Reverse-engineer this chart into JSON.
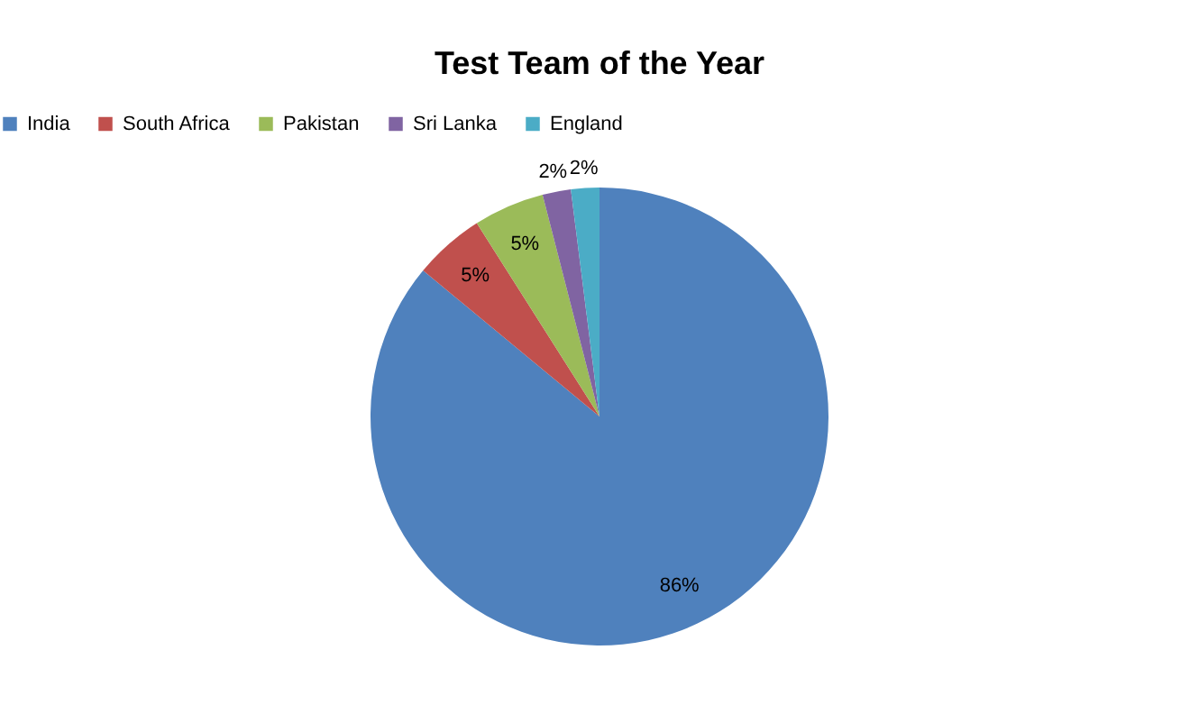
{
  "chart_data": {
    "type": "pie",
    "title": "Test Team of the Year",
    "categories": [
      "India",
      "South Africa",
      "Pakistan",
      "Sri Lanka",
      "England"
    ],
    "values": [
      86,
      5,
      5,
      2,
      2
    ],
    "colors": [
      "#4f81bd",
      "#c0504d",
      "#9bbb59",
      "#8064a2",
      "#4bacc6"
    ],
    "value_labels": [
      "86%",
      "5%",
      "5%",
      "2%",
      "2%"
    ],
    "legend": "top"
  }
}
